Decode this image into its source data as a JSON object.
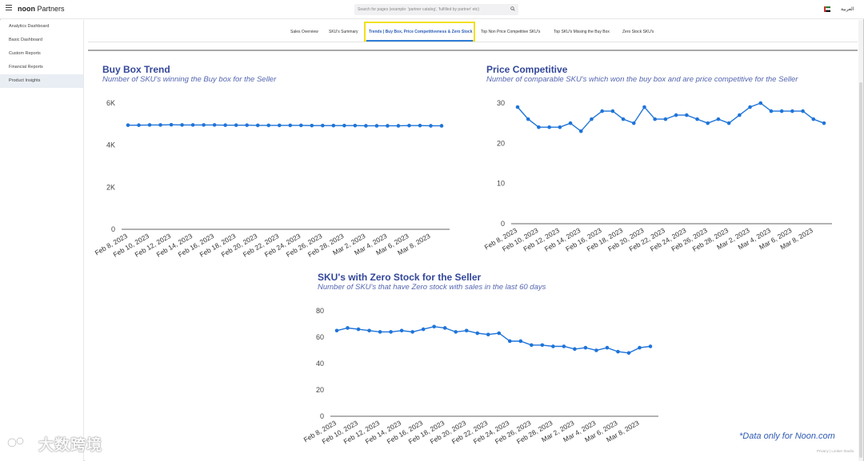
{
  "app": {
    "brand_bold": "noon",
    "brand_rest": " Partners"
  },
  "search": {
    "placeholder": "Search for pages (example: 'partner catalog', 'fulfilled by partner' etc)"
  },
  "language": "العربية",
  "sidebar": {
    "items": [
      {
        "label": "Analytics Dashboard"
      },
      {
        "label": "Basic Dashboard"
      },
      {
        "label": "Custom Reports"
      },
      {
        "label": "Financial Reports"
      },
      {
        "label": "Product Insights"
      }
    ]
  },
  "tabs": [
    {
      "label": "Sales Overview"
    },
    {
      "label": "SKU's Summary"
    },
    {
      "label": "Trends | Buy Box, Price Competitiveness & Zero Stock"
    },
    {
      "label": "Top Non Price Competitive SKU's"
    },
    {
      "label": "Top SKU's Missing the Buy Box"
    },
    {
      "label": "Zero Stock SKU's"
    }
  ],
  "footer_note": "*Data only for Noon.com",
  "watermark": "大数跨境",
  "tiny_footer": "Privacy | Looker Studio",
  "colors": {
    "series": "#1f74d9",
    "title": "#33479a",
    "subtitle": "#5566b0",
    "highlight": "#f2e01a"
  },
  "chart_data": [
    {
      "type": "line",
      "title": "Buy Box Trend",
      "subtitle": "Number of SKU's winning the Buy box for the Seller",
      "x": [
        "Feb 8, 2023",
        "Feb 9, 2023",
        "Feb 10, 2023",
        "Feb 11, 2023",
        "Feb 12, 2023",
        "Feb 13, 2023",
        "Feb 14, 2023",
        "Feb 15, 2023",
        "Feb 16, 2023",
        "Feb 17, 2023",
        "Feb 18, 2023",
        "Feb 19, 2023",
        "Feb 20, 2023",
        "Feb 21, 2023",
        "Feb 22, 2023",
        "Feb 23, 2023",
        "Feb 24, 2023",
        "Feb 25, 2023",
        "Feb 26, 2023",
        "Feb 27, 2023",
        "Feb 28, 2023",
        "Mar 1, 2023",
        "Mar 2, 2023",
        "Mar 3, 2023",
        "Mar 4, 2023",
        "Mar 5, 2023",
        "Mar 6, 2023",
        "Mar 7, 2023",
        "Mar 8, 2023",
        "Mar 9, 2023"
      ],
      "tick_labels": [
        "Feb 8, 2023",
        "Feb 10, 2023",
        "Feb 12, 2023",
        "Feb 14, 2023",
        "Feb 16, 2023",
        "Feb 18, 2023",
        "Feb 20, 2023",
        "Feb 22, 2023",
        "Feb 24, 2023",
        "Feb 26, 2023",
        "Feb 28, 2023",
        "Mar 2, 2023",
        "Mar 4, 2023",
        "Mar 6, 2023",
        "Mar 8, 2023"
      ],
      "values": [
        4950,
        4950,
        4960,
        4960,
        4970,
        4960,
        4960,
        4960,
        4960,
        4950,
        4950,
        4950,
        4940,
        4940,
        4940,
        4940,
        4940,
        4930,
        4930,
        4930,
        4930,
        4930,
        4920,
        4920,
        4920,
        4920,
        4930,
        4930,
        4920,
        4920
      ],
      "y_ticks": [
        {
          "v": 0,
          "label": "0"
        },
        {
          "v": 2000,
          "label": "2K"
        },
        {
          "v": 4000,
          "label": "4K"
        },
        {
          "v": 6000,
          "label": "6K"
        }
      ],
      "ylim": [
        0,
        6000
      ]
    },
    {
      "type": "line",
      "title": "Price Competitive",
      "subtitle": "Number of comparable SKU's which won the buy box and are price competitive for the Seller",
      "x": [
        "Feb 8, 2023",
        "Feb 9, 2023",
        "Feb 10, 2023",
        "Feb 11, 2023",
        "Feb 12, 2023",
        "Feb 13, 2023",
        "Feb 14, 2023",
        "Feb 15, 2023",
        "Feb 16, 2023",
        "Feb 17, 2023",
        "Feb 18, 2023",
        "Feb 19, 2023",
        "Feb 20, 2023",
        "Feb 21, 2023",
        "Feb 22, 2023",
        "Feb 23, 2023",
        "Feb 24, 2023",
        "Feb 25, 2023",
        "Feb 26, 2023",
        "Feb 27, 2023",
        "Feb 28, 2023",
        "Mar 1, 2023",
        "Mar 2, 2023",
        "Mar 3, 2023",
        "Mar 4, 2023",
        "Mar 5, 2023",
        "Mar 6, 2023",
        "Mar 7, 2023",
        "Mar 8, 2023",
        "Mar 9, 2023"
      ],
      "tick_labels": [
        "Feb 8, 2023",
        "Feb 10, 2023",
        "Feb 12, 2023",
        "Feb 14, 2023",
        "Feb 16, 2023",
        "Feb 18, 2023",
        "Feb 20, 2023",
        "Feb 22, 2023",
        "Feb 24, 2023",
        "Feb 26, 2023",
        "Feb 28, 2023",
        "Mar 2, 2023",
        "Mar 4, 2023",
        "Mar 6, 2023",
        "Mar 8, 2023"
      ],
      "values": [
        29,
        26,
        24,
        24,
        24,
        25,
        23,
        26,
        28,
        28,
        26,
        25,
        29,
        26,
        26,
        27,
        27,
        26,
        25,
        26,
        25,
        27,
        29,
        30,
        28,
        28,
        28,
        28,
        26,
        25
      ],
      "y_ticks": [
        {
          "v": 0,
          "label": "0"
        },
        {
          "v": 10,
          "label": "10"
        },
        {
          "v": 20,
          "label": "20"
        },
        {
          "v": 30,
          "label": "30"
        }
      ],
      "ylim": [
        0,
        30
      ]
    },
    {
      "type": "line",
      "title": "SKU's with Zero Stock for the Seller",
      "subtitle": "Number of SKU's that have Zero stock with sales in the last 60 days",
      "x": [
        "Feb 8, 2023",
        "Feb 9, 2023",
        "Feb 10, 2023",
        "Feb 11, 2023",
        "Feb 12, 2023",
        "Feb 13, 2023",
        "Feb 14, 2023",
        "Feb 15, 2023",
        "Feb 16, 2023",
        "Feb 17, 2023",
        "Feb 18, 2023",
        "Feb 19, 2023",
        "Feb 20, 2023",
        "Feb 21, 2023",
        "Feb 22, 2023",
        "Feb 23, 2023",
        "Feb 24, 2023",
        "Feb 25, 2023",
        "Feb 26, 2023",
        "Feb 27, 2023",
        "Feb 28, 2023",
        "Mar 1, 2023",
        "Mar 2, 2023",
        "Mar 3, 2023",
        "Mar 4, 2023",
        "Mar 5, 2023",
        "Mar 6, 2023",
        "Mar 7, 2023",
        "Mar 8, 2023",
        "Mar 9, 2023"
      ],
      "tick_labels": [
        "Feb 8, 2023",
        "Feb 10, 2023",
        "Feb 12, 2023",
        "Feb 14, 2023",
        "Feb 16, 2023",
        "Feb 18, 2023",
        "Feb 20, 2023",
        "Feb 22, 2023",
        "Feb 24, 2023",
        "Feb 26, 2023",
        "Feb 28, 2023",
        "Mar 2, 2023",
        "Mar 4, 2023",
        "Mar 6, 2023",
        "Mar 8, 2023"
      ],
      "values": [
        65,
        67,
        66,
        65,
        64,
        64,
        65,
        64,
        66,
        68,
        67,
        64,
        65,
        63,
        62,
        63,
        57,
        57,
        54,
        54,
        53,
        53,
        51,
        52,
        50,
        52,
        49,
        48,
        52,
        53
      ],
      "y_ticks": [
        {
          "v": 0,
          "label": "0"
        },
        {
          "v": 20,
          "label": "20"
        },
        {
          "v": 40,
          "label": "40"
        },
        {
          "v": 60,
          "label": "60"
        },
        {
          "v": 80,
          "label": "80"
        }
      ],
      "ylim": [
        0,
        80
      ]
    }
  ]
}
